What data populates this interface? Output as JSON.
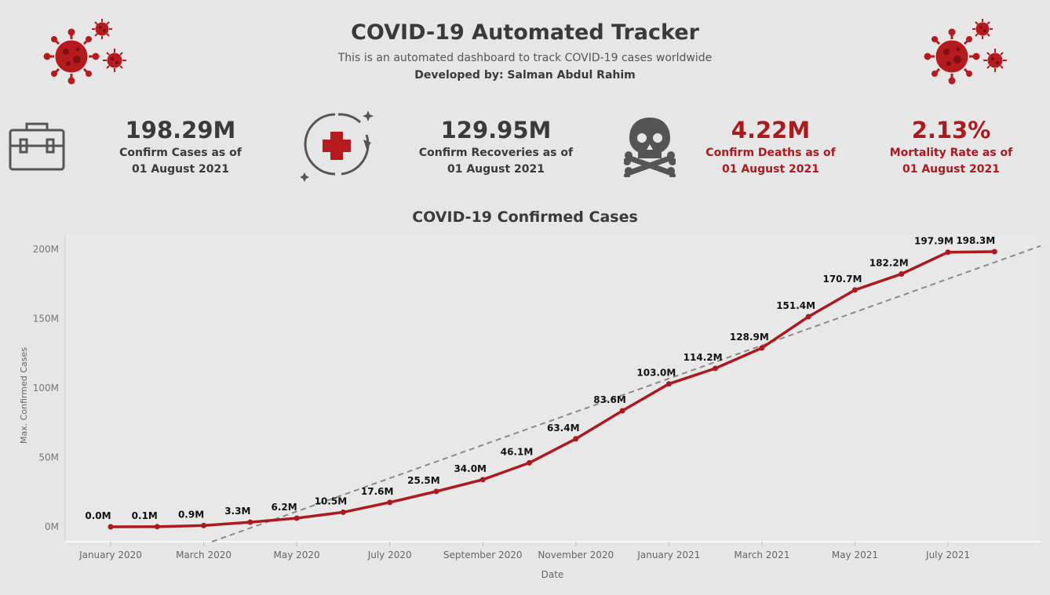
{
  "header": {
    "title": "COVID-19 Automated Tracker",
    "subtitle": "This is an automated dashboard to track COVID-19 cases worldwide",
    "developer": "Developed by: Salman Abdul Rahim"
  },
  "icons": {
    "virus_left": "virus-icon",
    "virus_right": "virus-icon",
    "cases": "briefcase-icon",
    "recoveries": "medical-cross-icon",
    "deaths": "skull-crossbones-icon"
  },
  "colors": {
    "accent_red": "#aa1a1e",
    "dark_text": "#3a3a3a",
    "background": "#e6e6e6",
    "trend_line": "#8a8a8a"
  },
  "kpis": {
    "cases": {
      "value": "198.29M",
      "label_line1": "Confirm Cases as of",
      "label_line2": "01 August 2021"
    },
    "recoveries": {
      "value": "129.95M",
      "label_line1": "Confirm Recoveries as of",
      "label_line2": "01 August 2021"
    },
    "deaths": {
      "value": "4.22M",
      "label_line1": "Confirm Deaths as of",
      "label_line2": "01 August 2021"
    },
    "mortality": {
      "value": "2.13%",
      "label_line1": "Mortality Rate as of",
      "label_line2": "01 August 2021"
    }
  },
  "chart_data": {
    "type": "line",
    "title": "COVID-19 Confirmed Cases",
    "xlabel": "Date",
    "ylabel": "Max. Confirmed Cases",
    "yticks": [
      "0M",
      "50M",
      "100M",
      "150M",
      "200M"
    ],
    "ytick_values": [
      0,
      50,
      100,
      150,
      200
    ],
    "xticks": [
      "January 2020",
      "March 2020",
      "May 2020",
      "July 2020",
      "September 2020",
      "November 2020",
      "January 2021",
      "March 2021",
      "May 2021",
      "July 2021"
    ],
    "xtick_months": [
      0,
      2,
      4,
      6,
      8,
      10,
      12,
      14,
      16,
      18
    ],
    "ylim": [
      0,
      200
    ],
    "series": [
      {
        "months": [
          0,
          1,
          2,
          3,
          4,
          5,
          6,
          7,
          8,
          9,
          10,
          11,
          12,
          13,
          14,
          15,
          16,
          17,
          18,
          19
        ],
        "values": [
          0.0,
          0.1,
          0.9,
          3.3,
          6.2,
          10.5,
          17.6,
          25.5,
          34.0,
          46.1,
          63.4,
          83.6,
          103.0,
          114.2,
          128.9,
          151.4,
          170.7,
          182.2,
          197.9,
          198.3
        ],
        "labels": [
          "0.0M",
          "0.1M",
          "0.9M",
          "3.3M",
          "6.2M",
          "10.5M",
          "17.6M",
          "25.5M",
          "34.0M",
          "46.1M",
          "63.4M",
          "83.6M",
          "103.0M",
          "114.2M",
          "128.9M",
          "151.4M",
          "170.7M",
          "182.2M",
          "197.9M",
          "198.3M"
        ],
        "color": "#aa1a1e"
      }
    ],
    "trend_line": {
      "style": "dashed",
      "color": "#8a8a8a"
    },
    "grid": false
  }
}
